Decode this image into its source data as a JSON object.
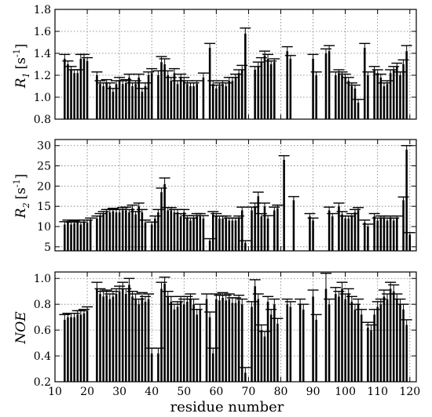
{
  "figure": {
    "xlabel": "residue number"
  },
  "chart_data": [
    {
      "type": "bar",
      "ylabel_main": "R",
      "ylabel_sub": "1",
      "ylabel_unit": "[s",
      "ylabel_exp": "-1",
      "ylabel_close": "]",
      "xlim": [
        10,
        122
      ],
      "ylim": [
        0.8,
        1.8
      ],
      "yticks": [
        0.8,
        1.0,
        1.2,
        1.4,
        1.6,
        1.8
      ],
      "ytick_labels": [
        "0.8",
        "1.0",
        "1.2",
        "1.4",
        "1.6",
        "1.8"
      ],
      "grid": true,
      "x": [
        13,
        14,
        15,
        16,
        17,
        18,
        19,
        20,
        23,
        24,
        25,
        26,
        27,
        28,
        29,
        30,
        31,
        32,
        33,
        34,
        35,
        36,
        37,
        38,
        39,
        40,
        42,
        43,
        44,
        45,
        46,
        47,
        48,
        49,
        50,
        51,
        52,
        53,
        54,
        56,
        58,
        59,
        60,
        61,
        62,
        63,
        64,
        65,
        66,
        67,
        68,
        69,
        72,
        73,
        74,
        75,
        76,
        77,
        78,
        82,
        83,
        90,
        91,
        94,
        95,
        97,
        98,
        99,
        100,
        101,
        102,
        103,
        104,
        106,
        107,
        109,
        110,
        111,
        112,
        113,
        114,
        115,
        116,
        117,
        118,
        119
      ],
      "values": [
        1.35,
        1.3,
        1.25,
        1.22,
        1.22,
        1.35,
        1.35,
        1.33,
        1.2,
        1.12,
        1.1,
        1.13,
        1.1,
        1.05,
        1.12,
        1.15,
        1.12,
        1.13,
        1.18,
        1.1,
        1.12,
        1.18,
        1.05,
        1.1,
        1.2,
        1.22,
        1.2,
        1.32,
        1.3,
        1.2,
        1.15,
        1.22,
        1.12,
        1.18,
        1.15,
        1.12,
        1.1,
        1.1,
        1.12,
        1.18,
        1.45,
        1.12,
        1.08,
        1.1,
        1.12,
        1.1,
        1.15,
        1.15,
        1.18,
        1.22,
        1.25,
        1.58,
        1.25,
        1.28,
        1.32,
        1.38,
        1.35,
        1.3,
        1.32,
        1.42,
        1.35,
        1.35,
        1.2,
        1.4,
        1.42,
        1.2,
        1.22,
        1.2,
        1.18,
        1.15,
        1.1,
        1.08,
        0.95,
        1.45,
        1.2,
        1.25,
        1.22,
        1.18,
        1.1,
        1.12,
        1.22,
        1.25,
        1.28,
        1.2,
        1.3,
        1.42
      ],
      "errors": [
        0.04,
        0.03,
        0.03,
        0.03,
        0.03,
        0.04,
        0.04,
        0.03,
        0.03,
        0.03,
        0.03,
        0.03,
        0.03,
        0.03,
        0.03,
        0.03,
        0.03,
        0.03,
        0.03,
        0.03,
        0.03,
        0.03,
        0.03,
        0.03,
        0.03,
        0.04,
        0.04,
        0.05,
        0.05,
        0.04,
        0.03,
        0.04,
        0.03,
        0.03,
        0.03,
        0.03,
        0.03,
        0.03,
        0.03,
        0.04,
        0.04,
        0.03,
        0.03,
        0.03,
        0.03,
        0.03,
        0.03,
        0.03,
        0.03,
        0.03,
        0.04,
        0.05,
        0.03,
        0.04,
        0.04,
        0.04,
        0.04,
        0.03,
        0.03,
        0.04,
        0.03,
        0.04,
        0.03,
        0.04,
        0.05,
        0.03,
        0.03,
        0.03,
        0.03,
        0.03,
        0.03,
        0.03,
        0.03,
        0.04,
        0.03,
        0.03,
        0.03,
        0.03,
        0.03,
        0.03,
        0.03,
        0.03,
        0.03,
        0.03,
        0.04,
        0.05
      ]
    },
    {
      "type": "bar",
      "ylabel_main": "R",
      "ylabel_sub": "2",
      "ylabel_unit": "[s",
      "ylabel_exp": "-1",
      "ylabel_close": "]",
      "xlim": [
        10,
        122
      ],
      "ylim": [
        4.0,
        31.5
      ],
      "yticks": [
        5,
        10,
        15,
        20,
        25,
        30
      ],
      "ytick_labels": [
        "5",
        "10",
        "15",
        "20",
        "25",
        "30"
      ],
      "grid": true,
      "x": [
        13,
        14,
        15,
        16,
        17,
        18,
        19,
        20,
        21,
        23,
        24,
        25,
        26,
        27,
        28,
        29,
        30,
        31,
        32,
        33,
        34,
        35,
        36,
        37,
        38,
        40,
        41,
        42,
        43,
        44,
        45,
        46,
        47,
        48,
        49,
        50,
        51,
        52,
        53,
        54,
        55,
        56,
        58,
        59,
        60,
        61,
        62,
        63,
        64,
        65,
        66,
        67,
        68,
        69,
        71,
        72,
        73,
        74,
        75,
        76,
        78,
        79,
        81,
        84,
        89,
        90,
        95,
        96,
        98,
        99,
        100,
        101,
        102,
        103,
        104,
        106,
        107,
        109,
        110,
        111,
        112,
        113,
        114,
        115,
        116,
        118,
        119,
        120
      ],
      "values": [
        10.5,
        11.0,
        10.5,
        10.8,
        11.0,
        10.5,
        11.0,
        11.0,
        11.5,
        12.0,
        12.5,
        13.0,
        13.5,
        13.5,
        13.8,
        13.5,
        13.5,
        14.0,
        14.0,
        13.5,
        14.5,
        13.0,
        15.0,
        13.5,
        11.0,
        10.5,
        12.0,
        13.5,
        18.5,
        20.5,
        14.0,
        14.0,
        13.5,
        13.5,
        12.5,
        13.5,
        12.0,
        11.5,
        12.0,
        12.5,
        12.5,
        12.0,
        6.5,
        13.0,
        12.5,
        12.0,
        12.0,
        12.0,
        11.5,
        11.5,
        11.5,
        12.0,
        14.0,
        6.0,
        14.0,
        15.0,
        17.5,
        12.5,
        15.0,
        12.0,
        14.0,
        14.5,
        26.5,
        16.5,
        12.5,
        11.5,
        14.0,
        12.5,
        15.0,
        13.0,
        12.0,
        12.0,
        12.5,
        13.5,
        14.0,
        11.0,
        10.0,
        12.5,
        11.5,
        12.0,
        12.0,
        11.5,
        12.0,
        11.5,
        12.0,
        16.5,
        29.0,
        8.0
      ],
      "errors": [
        0.7,
        0.6,
        0.6,
        0.6,
        0.6,
        0.6,
        0.6,
        0.6,
        0.6,
        0.6,
        0.7,
        0.7,
        0.7,
        0.7,
        0.7,
        0.7,
        0.7,
        0.7,
        0.8,
        0.7,
        0.8,
        0.7,
        0.8,
        0.7,
        0.6,
        0.6,
        0.6,
        0.7,
        1.0,
        1.5,
        0.7,
        0.7,
        0.7,
        0.7,
        0.7,
        0.7,
        0.7,
        0.6,
        0.7,
        0.7,
        0.7,
        0.7,
        0.5,
        0.7,
        0.7,
        0.6,
        0.6,
        0.6,
        0.6,
        0.6,
        0.6,
        0.6,
        0.8,
        0.5,
        0.8,
        0.8,
        1.0,
        0.7,
        0.8,
        0.7,
        0.8,
        0.8,
        1.0,
        0.9,
        0.7,
        0.6,
        0.8,
        0.7,
        0.8,
        0.7,
        0.6,
        0.6,
        0.7,
        0.7,
        0.7,
        0.6,
        0.6,
        0.7,
        0.6,
        0.6,
        0.6,
        0.6,
        0.6,
        0.6,
        0.6,
        0.8,
        1.0,
        0.5
      ]
    },
    {
      "type": "bar",
      "ylabel_main": "NOE",
      "xlim": [
        10,
        122
      ],
      "ylim": [
        0.2,
        1.05
      ],
      "yticks": [
        0.2,
        0.4,
        0.6,
        0.8,
        1.0
      ],
      "ytick_labels": [
        "0.2",
        "0.4",
        "0.6",
        "0.8",
        "1.0"
      ],
      "xticks": [
        10,
        20,
        30,
        40,
        50,
        60,
        70,
        80,
        90,
        100,
        110,
        120
      ],
      "xtick_labels": [
        "10",
        "20",
        "30",
        "40",
        "50",
        "60",
        "70",
        "80",
        "90",
        "100",
        "110",
        "120"
      ],
      "grid": true,
      "x": [
        13,
        14,
        15,
        16,
        17,
        18,
        19,
        20,
        23,
        24,
        25,
        26,
        27,
        28,
        29,
        30,
        31,
        32,
        33,
        34,
        35,
        36,
        37,
        38,
        39,
        40,
        42,
        43,
        44,
        45,
        46,
        47,
        48,
        49,
        50,
        51,
        52,
        53,
        54,
        55,
        57,
        58,
        59,
        60,
        61,
        62,
        63,
        64,
        65,
        66,
        67,
        68,
        69,
        71,
        72,
        73,
        74,
        75,
        76,
        77,
        78,
        79,
        82,
        83,
        86,
        87,
        90,
        91,
        94,
        95,
        97,
        98,
        99,
        100,
        101,
        102,
        103,
        104,
        105,
        107,
        108,
        109,
        110,
        111,
        112,
        113,
        114,
        115,
        116,
        117,
        118,
        119
      ],
      "values": [
        0.68,
        0.7,
        0.7,
        0.7,
        0.72,
        0.72,
        0.73,
        0.75,
        0.92,
        0.88,
        0.86,
        0.87,
        0.84,
        0.86,
        0.88,
        0.9,
        0.92,
        0.88,
        0.95,
        0.86,
        0.84,
        0.8,
        0.85,
        0.82,
        0.84,
        0.42,
        0.42,
        0.92,
        0.96,
        0.86,
        0.82,
        0.76,
        0.78,
        0.82,
        0.8,
        0.82,
        0.84,
        0.8,
        0.72,
        0.76,
        0.84,
        0.7,
        0.42,
        0.84,
        0.83,
        0.85,
        0.83,
        0.84,
        0.81,
        0.81,
        0.83,
        0.8,
        0.27,
        0.78,
        0.94,
        0.84,
        0.6,
        0.55,
        0.82,
        0.72,
        0.8,
        0.65,
        0.8,
        0.78,
        0.8,
        0.76,
        0.86,
        0.68,
        0.92,
        0.8,
        0.88,
        0.86,
        0.92,
        0.84,
        0.88,
        0.82,
        0.76,
        0.8,
        0.72,
        0.62,
        0.6,
        0.72,
        0.78,
        0.8,
        0.86,
        0.84,
        0.92,
        0.9,
        0.84,
        0.8,
        0.76,
        0.64
      ],
      "errors": [
        0.04,
        0.03,
        0.03,
        0.03,
        0.03,
        0.03,
        0.03,
        0.03,
        0.05,
        0.04,
        0.04,
        0.04,
        0.04,
        0.04,
        0.04,
        0.04,
        0.05,
        0.04,
        0.05,
        0.04,
        0.04,
        0.04,
        0.04,
        0.04,
        0.04,
        0.04,
        0.04,
        0.05,
        0.05,
        0.04,
        0.04,
        0.04,
        0.04,
        0.04,
        0.04,
        0.04,
        0.04,
        0.04,
        0.04,
        0.04,
        0.04,
        0.04,
        0.04,
        0.04,
        0.04,
        0.04,
        0.04,
        0.04,
        0.04,
        0.04,
        0.04,
        0.04,
        0.04,
        0.04,
        0.05,
        0.04,
        0.04,
        0.04,
        0.04,
        0.04,
        0.04,
        0.04,
        0.04,
        0.04,
        0.04,
        0.04,
        0.05,
        0.04,
        0.12,
        0.04,
        0.05,
        0.04,
        0.05,
        0.04,
        0.04,
        0.04,
        0.04,
        0.04,
        0.04,
        0.04,
        0.04,
        0.04,
        0.04,
        0.04,
        0.05,
        0.04,
        0.05,
        0.05,
        0.04,
        0.04,
        0.04,
        0.04
      ]
    }
  ]
}
